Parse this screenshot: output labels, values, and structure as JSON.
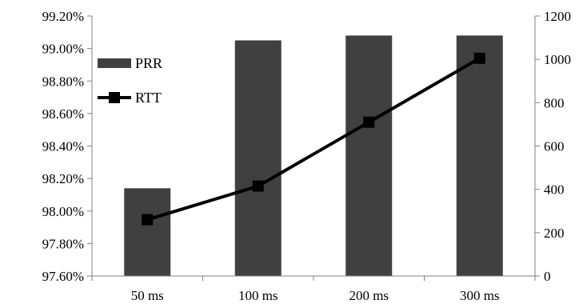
{
  "chart_data": {
    "type": "bar",
    "title": "",
    "xlabel": "",
    "ylabel": "",
    "y2label": "",
    "categories": [
      "50 ms",
      "100 ms",
      "200 ms",
      "300 ms"
    ],
    "series": [
      {
        "name": "PRR",
        "type": "bar",
        "axis": "left",
        "values": [
          98.14,
          99.05,
          99.08,
          99.08
        ],
        "color": "#404040"
      },
      {
        "name": "RTT",
        "type": "line",
        "axis": "right",
        "marker": "square",
        "values": [
          260,
          415,
          710,
          1005
        ],
        "color": "#000000"
      }
    ],
    "ylim": [
      97.6,
      99.2
    ],
    "y2lim": [
      0,
      1200
    ],
    "y_ticks": [
      "97.60%",
      "97.80%",
      "98.00%",
      "98.20%",
      "98.40%",
      "98.60%",
      "98.80%",
      "99.00%",
      "99.20%"
    ],
    "y2_ticks": [
      "0",
      "200",
      "400",
      "600",
      "800",
      "1000",
      "1200"
    ],
    "grid": false,
    "legend_position": "top-left"
  }
}
